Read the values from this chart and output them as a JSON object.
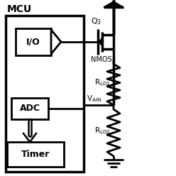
{
  "bg_color": "#ffffff",
  "line_color": "#000000",
  "figsize": [
    2.48,
    2.48
  ],
  "dpi": 100,
  "mcu_label": "MCU",
  "io_label": "I/O",
  "adc_label": "ADC",
  "timer_label": "Timer",
  "nmos_label": "NMOS",
  "q3_label": "Q",
  "q3_sub": "3",
  "vain_label": "V",
  "vain_sub": "AIN",
  "rld1_label": "R",
  "rld1_sub": "LD1",
  "rld2_label": "R",
  "rld2_sub": "LD2"
}
